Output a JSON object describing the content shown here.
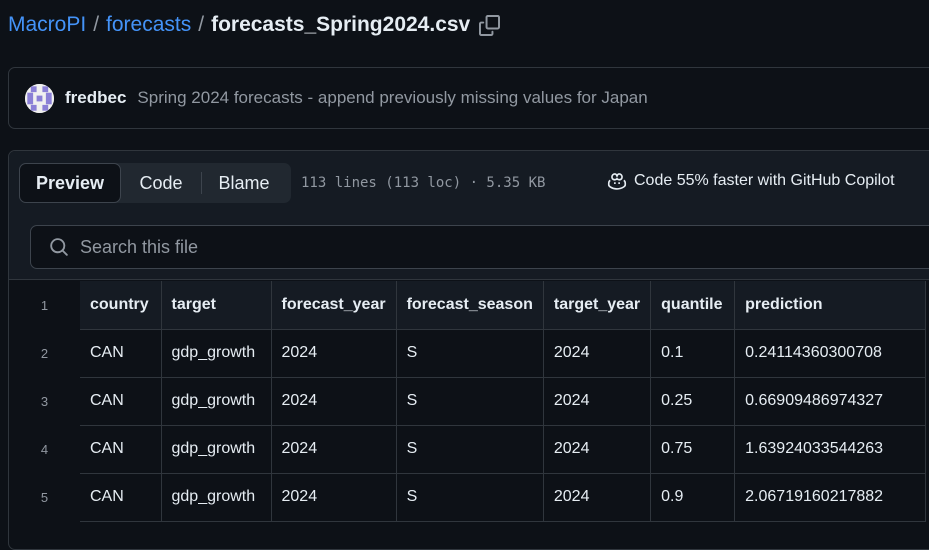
{
  "breadcrumb": {
    "repo": "MacroPI",
    "folder": "forecasts",
    "file": "forecasts_Spring2024.csv",
    "separator": "/"
  },
  "commit": {
    "author": "fredbec",
    "message": "Spring 2024 forecasts - append previously missing values for Japan"
  },
  "toolbar": {
    "tabs": [
      "Preview",
      "Code",
      "Blame"
    ],
    "file_info": "113 lines (113 loc) · 5.35 KB",
    "copilot": "Code 55% faster with GitHub Copilot"
  },
  "search": {
    "placeholder": "Search this file"
  },
  "table": {
    "header_line": "1",
    "columns": [
      "country",
      "target",
      "forecast_year",
      "forecast_season",
      "target_year",
      "quantile",
      "prediction"
    ],
    "rows": [
      {
        "line": "2",
        "cells": [
          "CAN",
          "gdp_growth",
          "2024",
          "S",
          "2024",
          "0.1",
          "0.24114360300708"
        ]
      },
      {
        "line": "3",
        "cells": [
          "CAN",
          "gdp_growth",
          "2024",
          "S",
          "2024",
          "0.25",
          "0.66909486974327"
        ]
      },
      {
        "line": "4",
        "cells": [
          "CAN",
          "gdp_growth",
          "2024",
          "S",
          "2024",
          "0.75",
          "1.63924033544263"
        ]
      },
      {
        "line": "5",
        "cells": [
          "CAN",
          "gdp_growth",
          "2024",
          "S",
          "2024",
          "0.9",
          "2.06719160217882"
        ]
      }
    ]
  },
  "colors": {
    "background": "#0d1117",
    "link": "#4493f8",
    "muted": "#9198a1",
    "border": "#30363d"
  }
}
